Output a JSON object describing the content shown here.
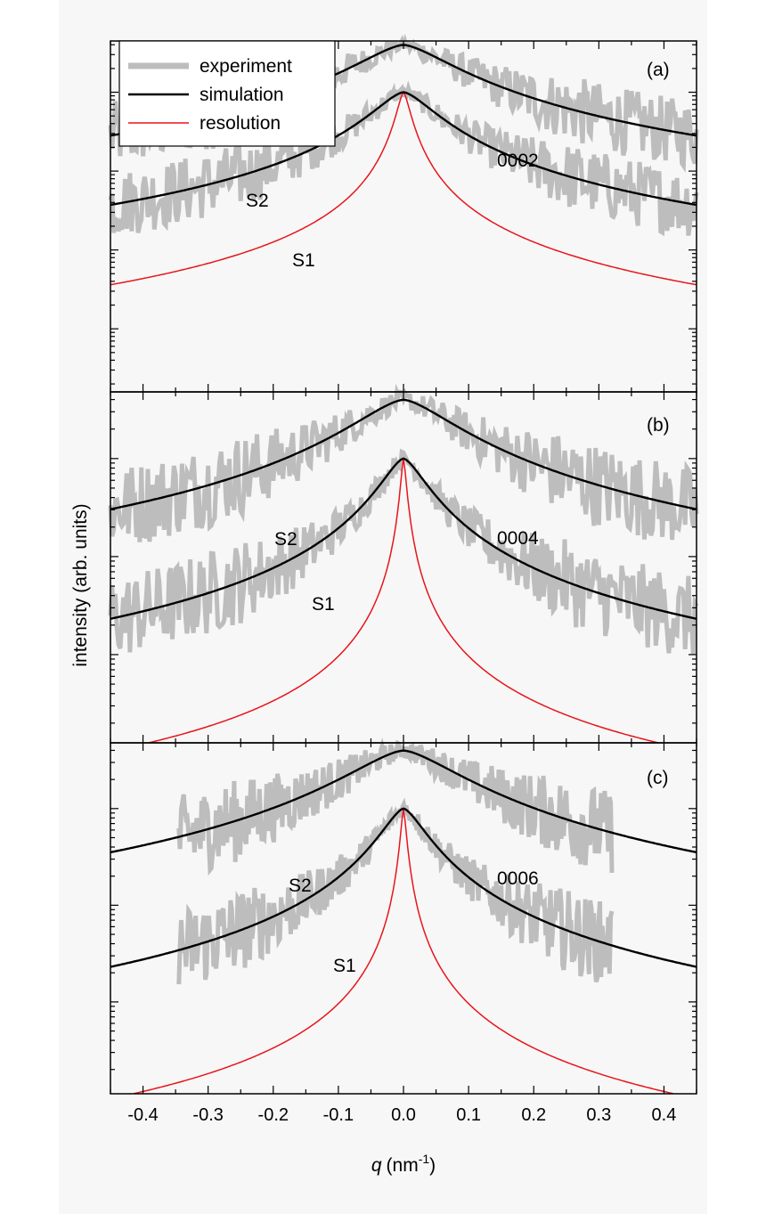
{
  "chart_data": {
    "type": "line",
    "xlabel": "q (nm⁻¹)",
    "xlabel_symbol": "q",
    "xlabel_unit": "(nm",
    "xlabel_exp": "-1",
    "xlabel_close": ")",
    "ylabel": "intensity (arb. units)",
    "xlim": [
      -0.45,
      0.45
    ],
    "yscale": "log",
    "x_ticks": [
      -0.4,
      -0.3,
      -0.2,
      -0.1,
      0.0,
      0.1,
      0.2,
      0.3,
      0.4
    ],
    "x_tick_labels": [
      "-0.4",
      "-0.3",
      "-0.2",
      "-0.1",
      "0.0",
      "0.1",
      "0.2",
      "0.3",
      "0.4"
    ],
    "colors": {
      "experiment": "#bdbdbd",
      "simulation": "#000000",
      "resolution": "#e8141b",
      "plot_bg": "#f7f7f7"
    },
    "legend": [
      {
        "label": "experiment",
        "color": "#bdbdbd"
      },
      {
        "label": "simulation",
        "color": "#000000"
      },
      {
        "label": "resolution",
        "color": "#e8141b"
      }
    ],
    "legend_position": "top-left of panel (a)",
    "panels": [
      {
        "label": "(a)",
        "reflection": "0002",
        "ylim_log10": [
          -1.8,
          2.65
        ],
        "series": [
          {
            "name": "S2 simulation",
            "peak_log10": 2.6,
            "gamma": 0.085,
            "background_log10": -0.65,
            "exp_start": -0.45,
            "exp_end": 0.45
          },
          {
            "name": "S1 simulation",
            "peak_log10": 2.0,
            "gamma": 0.055,
            "background_log10": -1.6,
            "exp_start": -0.45,
            "exp_end": 0.45
          },
          {
            "name": "resolution",
            "peak_log10": 2.0,
            "gamma": 0.012,
            "background_log10": -4.0
          }
        ],
        "labels": {
          "S2": "S2",
          "S1": "S1"
        }
      },
      {
        "label": "(b)",
        "reflection": "0004",
        "ylim_log10": [
          -1.9,
          1.68
        ],
        "series": [
          {
            "name": "S2 simulation",
            "peak_log10": 1.6,
            "gamma": 0.09,
            "background_log10": -2.2,
            "exp_start": -0.45,
            "exp_end": 0.45
          },
          {
            "name": "S1 simulation",
            "peak_log10": 1.0,
            "gamma": 0.04,
            "background_log10": -2.6,
            "exp_start": -0.45,
            "exp_end": 0.45
          },
          {
            "name": "resolution",
            "peak_log10": 1.0,
            "gamma": 0.005,
            "background_log10": -3.0
          }
        ],
        "labels": {
          "S2": "S2",
          "S1": "S1"
        }
      },
      {
        "label": "(c)",
        "reflection": "0006",
        "ylim_log10": [
          -1.95,
          1.68
        ],
        "series": [
          {
            "name": "S2 simulation",
            "peak_log10": 1.6,
            "gamma": 0.1,
            "background_log10": -2.6,
            "exp_start": -0.345,
            "exp_end": 0.32
          },
          {
            "name": "S1 simulation",
            "peak_log10": 1.0,
            "gamma": 0.04,
            "background_log10": -3.0,
            "exp_start": -0.345,
            "exp_end": 0.32
          },
          {
            "name": "resolution",
            "peak_log10": 1.0,
            "gamma": 0.005,
            "background_log10": -3.2
          }
        ],
        "labels": {
          "S2": "S2",
          "S1": "S1"
        }
      }
    ]
  }
}
